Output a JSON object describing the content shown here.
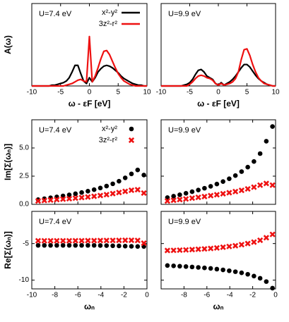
{
  "chart_data": [
    {
      "type": "line",
      "annotation": "U=7.4 eV",
      "ylabel": "A(ω)",
      "xlabel": "ω - εF [eV]",
      "legend": "upper right",
      "xlim": [
        -10,
        10
      ],
      "ylim": [
        0,
        1
      ],
      "xticks": [
        -10,
        -5,
        0,
        5,
        10
      ],
      "x": [
        -10,
        -9.5,
        -9,
        -8.5,
        -8,
        -7.5,
        -7,
        -6.5,
        -6,
        -5.5,
        -5,
        -4.5,
        -4,
        -3.5,
        -3,
        -2.5,
        -2,
        -1.5,
        -1,
        -0.5,
        0,
        0.5,
        1,
        1.5,
        2,
        2.5,
        3,
        3.5,
        4,
        4.5,
        5,
        5.5,
        6,
        6.5,
        7,
        7.5,
        8,
        8.5,
        9,
        9.5,
        10
      ],
      "series": [
        {
          "name": "x²-y²",
          "color": "#000000",
          "values": [
            0,
            0,
            0,
            0,
            0,
            0,
            0,
            0.01,
            0.01,
            0.02,
            0.03,
            0.04,
            0.06,
            0.1,
            0.17,
            0.25,
            0.25,
            0.15,
            0.06,
            0.03,
            0.1,
            0.05,
            0.1,
            0.17,
            0.21,
            0.24,
            0.25,
            0.24,
            0.22,
            0.19,
            0.16,
            0.12,
            0.09,
            0.07,
            0.05,
            0.03,
            0.02,
            0.01,
            0.01,
            0,
            0
          ]
        },
        {
          "name": "3z²-r²",
          "color": "#ee1111",
          "values": [
            0,
            0,
            0,
            0,
            0,
            0,
            0,
            0,
            0,
            0,
            0,
            0,
            0.01,
            0.02,
            0.03,
            0.05,
            0.07,
            0.08,
            0.06,
            0.05,
            0.6,
            0.05,
            0.12,
            0.22,
            0.33,
            0.42,
            0.43,
            0.38,
            0.3,
            0.22,
            0.15,
            0.1,
            0.06,
            0.04,
            0.02,
            0.01,
            0,
            0,
            0,
            0,
            0
          ]
        }
      ]
    },
    {
      "type": "line",
      "annotation": "U=9.9 eV",
      "xlabel": "ω - εF [eV]",
      "xlim": [
        -10,
        10
      ],
      "ylim": [
        0,
        1
      ],
      "xticks": [
        -10,
        -5,
        0,
        5,
        10
      ],
      "x": [
        -10,
        -9.5,
        -9,
        -8.5,
        -8,
        -7.5,
        -7,
        -6.5,
        -6,
        -5.5,
        -5,
        -4.5,
        -4,
        -3.5,
        -3,
        -2.5,
        -2,
        -1.5,
        -1,
        -0.5,
        0,
        0.5,
        1,
        1.5,
        2,
        2.5,
        3,
        3.5,
        4,
        4.5,
        5,
        5.5,
        6,
        6.5,
        7,
        7.5,
        8,
        8.5,
        9,
        9.5,
        10
      ],
      "series": [
        {
          "color": "#000000",
          "values": [
            0,
            0,
            0,
            0,
            0,
            0,
            0,
            0,
            0.01,
            0.02,
            0.04,
            0.08,
            0.14,
            0.19,
            0.2,
            0.17,
            0.12,
            0.1,
            0.08,
            0.03,
            0.01,
            0.04,
            0.01,
            0.03,
            0.05,
            0.08,
            0.12,
            0.17,
            0.22,
            0.26,
            0.26,
            0.23,
            0.18,
            0.13,
            0.09,
            0.06,
            0.04,
            0.02,
            0.01,
            0,
            0
          ]
        },
        {
          "color": "#ee1111",
          "values": [
            0,
            0,
            0,
            0,
            0,
            0,
            0,
            0,
            0,
            0,
            0.02,
            0.05,
            0.09,
            0.12,
            0.13,
            0.12,
            0.1,
            0.09,
            0.07,
            0.03,
            0.01,
            0.03,
            0.01,
            0.02,
            0.03,
            0.05,
            0.09,
            0.17,
            0.32,
            0.44,
            0.45,
            0.37,
            0.26,
            0.17,
            0.1,
            0.06,
            0.03,
            0.02,
            0.01,
            0,
            0
          ]
        }
      ]
    },
    {
      "type": "scatter",
      "annotation": "U=7.4 eV",
      "ylabel": "Im[Σ(ωₙ)]",
      "legend": "upper right",
      "show_xtick_labels": false,
      "xlim": [
        -10,
        0
      ],
      "ylim": [
        0,
        7.5
      ],
      "xticks": [
        -10,
        -8,
        -6,
        -4,
        -2,
        0
      ],
      "yticks": [
        {
          "value": 0,
          "label": "0.0"
        },
        {
          "value": 2.5,
          "label": "2.5"
        },
        {
          "value": 5,
          "label": "5.0"
        }
      ],
      "x": [
        -9.45,
        -8.91,
        -8.37,
        -7.83,
        -7.29,
        -6.75,
        -6.21,
        -5.67,
        -5.13,
        -4.59,
        -4.05,
        -3.51,
        -2.97,
        -2.43,
        -1.89,
        -1.35,
        -0.81,
        -0.27
      ],
      "series": [
        {
          "name": "x²-y²",
          "color": "#000000",
          "marker": "circle",
          "values": [
            0.42,
            0.5,
            0.58,
            0.66,
            0.75,
            0.84,
            0.94,
            1.05,
            1.17,
            1.3,
            1.45,
            1.62,
            1.82,
            2.05,
            2.35,
            2.7,
            3.05,
            2.6
          ]
        },
        {
          "name": "3z²-r²",
          "color": "#ee1111",
          "marker": "cross",
          "values": [
            0.3,
            0.34,
            0.38,
            0.42,
            0.46,
            0.5,
            0.55,
            0.6,
            0.65,
            0.71,
            0.78,
            0.86,
            0.95,
            1.05,
            1.15,
            1.25,
            1.3,
            1.0
          ]
        }
      ]
    },
    {
      "type": "scatter",
      "annotation": "U=9.9 eV",
      "show_xtick_labels": false,
      "show_ytick_labels": false,
      "xlim": [
        -10,
        0
      ],
      "ylim": [
        0,
        7.5
      ],
      "xticks": [
        -10,
        -8,
        -6,
        -4,
        -2,
        0
      ],
      "yticks": [
        0,
        2.5,
        5
      ],
      "x": [
        -9.45,
        -8.91,
        -8.37,
        -7.83,
        -7.29,
        -6.75,
        -6.21,
        -5.67,
        -5.13,
        -4.59,
        -4.05,
        -3.51,
        -2.97,
        -2.43,
        -1.89,
        -1.35,
        -0.81,
        -0.27
      ],
      "series": [
        {
          "color": "#000000",
          "marker": "circle",
          "values": [
            0.6,
            0.72,
            0.85,
            0.98,
            1.12,
            1.27,
            1.43,
            1.6,
            1.8,
            2.02,
            2.27,
            2.55,
            2.9,
            3.3,
            3.8,
            4.5,
            5.6,
            6.9
          ]
        },
        {
          "color": "#ee1111",
          "marker": "cross",
          "values": [
            0.3,
            0.36,
            0.42,
            0.48,
            0.55,
            0.62,
            0.69,
            0.77,
            0.85,
            0.94,
            1.03,
            1.13,
            1.24,
            1.37,
            1.52,
            1.7,
            1.85,
            1.7
          ]
        }
      ]
    },
    {
      "type": "scatter",
      "annotation": "U=7.4 eV",
      "ylabel": "Re[Σ(ωₙ)]",
      "xlabel": "ωₙ",
      "xlim": [
        -10,
        0
      ],
      "ylim": [
        -11.2,
        -0.6
      ],
      "xticks": [
        -10,
        -8,
        -6,
        -4,
        -2,
        0
      ],
      "yticks": [
        -10,
        -5
      ],
      "x": [
        -9.45,
        -8.91,
        -8.37,
        -7.83,
        -7.29,
        -6.75,
        -6.21,
        -5.67,
        -5.13,
        -4.59,
        -4.05,
        -3.51,
        -2.97,
        -2.43,
        -1.89,
        -1.35,
        -0.81,
        -0.27
      ],
      "series": [
        {
          "color": "#000000",
          "marker": "circle",
          "values": [
            -5.25,
            -5.25,
            -5.25,
            -5.25,
            -5.25,
            -5.25,
            -5.25,
            -5.25,
            -5.25,
            -5.25,
            -5.27,
            -5.28,
            -5.3,
            -5.32,
            -5.35,
            -5.38,
            -5.4,
            -5.4
          ]
        },
        {
          "color": "#ee1111",
          "marker": "cross",
          "values": [
            -4.62,
            -4.62,
            -4.62,
            -4.62,
            -4.62,
            -4.62,
            -4.61,
            -4.61,
            -4.6,
            -4.6,
            -4.59,
            -4.58,
            -4.57,
            -4.56,
            -4.55,
            -4.55,
            -4.58,
            -4.95
          ]
        }
      ]
    },
    {
      "type": "scatter",
      "annotation": "U=9.9 eV",
      "xlabel": "ωₙ",
      "show_ytick_labels": false,
      "xlim": [
        -10,
        0
      ],
      "ylim": [
        -11.2,
        -0.6
      ],
      "xticks": [
        -8,
        -6,
        -4,
        -2,
        0
      ],
      "yticks": [
        -10,
        -5
      ],
      "x": [
        -9.45,
        -8.91,
        -8.37,
        -7.83,
        -7.29,
        -6.75,
        -6.21,
        -5.67,
        -5.13,
        -4.59,
        -4.05,
        -3.51,
        -2.97,
        -2.43,
        -1.89,
        -1.35,
        -0.81,
        -0.27
      ],
      "series": [
        {
          "color": "#000000",
          "marker": "circle",
          "values": [
            -8.0,
            -8.05,
            -8.1,
            -8.15,
            -8.2,
            -8.26,
            -8.33,
            -8.4,
            -8.5,
            -8.6,
            -8.72,
            -8.85,
            -9.0,
            -9.2,
            -9.45,
            -9.75,
            -10.2,
            -11.1
          ]
        },
        {
          "color": "#ee1111",
          "marker": "cross",
          "values": [
            -5.95,
            -5.93,
            -5.9,
            -5.87,
            -5.83,
            -5.78,
            -5.73,
            -5.67,
            -5.6,
            -5.5,
            -5.4,
            -5.3,
            -5.15,
            -5.0,
            -4.8,
            -4.55,
            -4.2,
            -3.75
          ]
        }
      ]
    }
  ]
}
